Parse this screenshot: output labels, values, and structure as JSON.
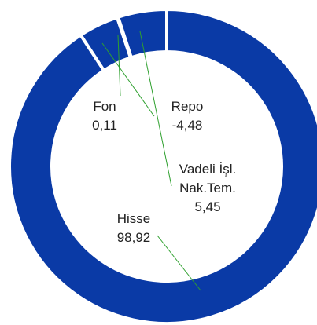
{
  "chart_data": {
    "type": "donut",
    "categories": [
      "Hisse",
      "Repo",
      "Fon",
      "Vadeli İşl. Nak.Tem."
    ],
    "values": [
      98.92,
      -4.48,
      0.11,
      5.45
    ],
    "value_labels": [
      "98,92",
      "-4,48",
      "0,11",
      "5,45"
    ],
    "color": "#0a3aa6"
  }
}
